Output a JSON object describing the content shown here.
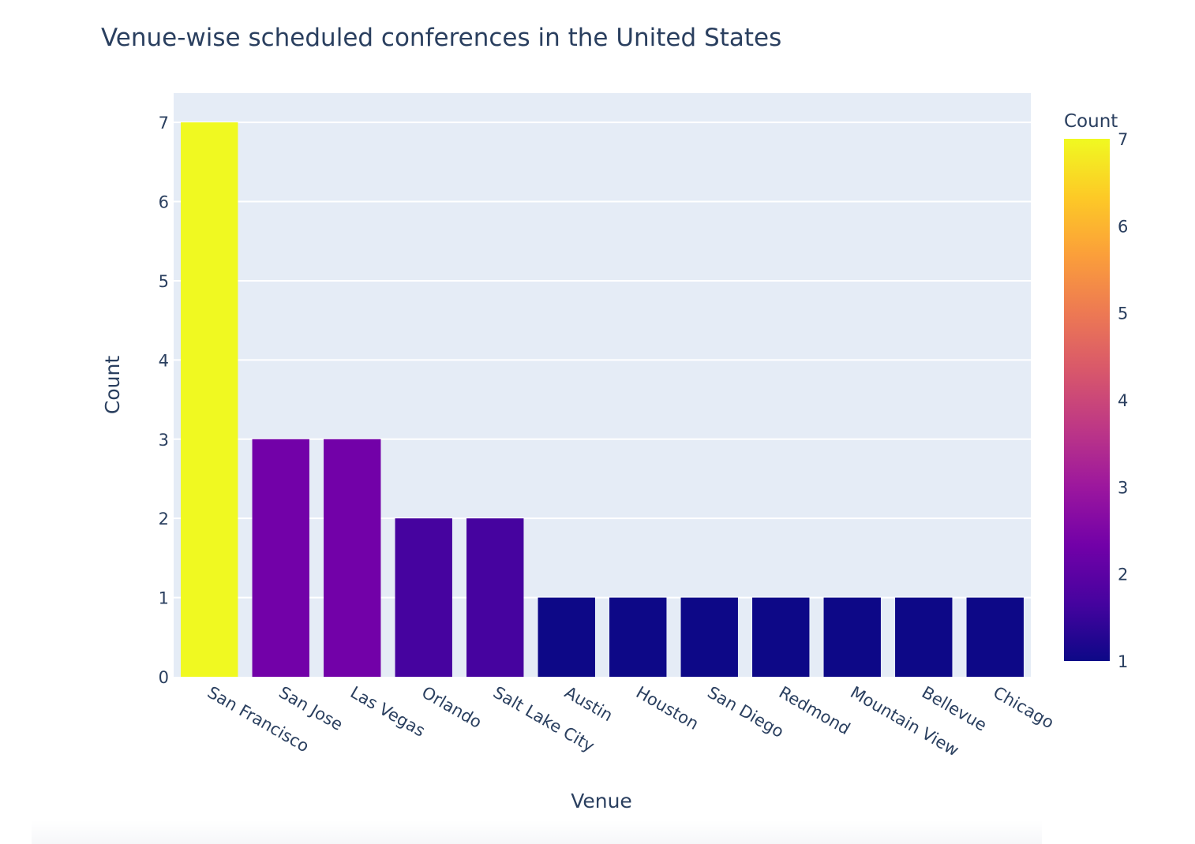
{
  "chart_data": {
    "type": "bar",
    "title": "Venue-wise scheduled conferences in the United States",
    "xlabel": "Venue",
    "ylabel": "Count",
    "categories": [
      "San Francisco",
      "San Jose",
      "Las Vegas",
      "Orlando",
      "Salt Lake City",
      "Austin",
      "Houston",
      "San Diego",
      "Redmond",
      "Mountain View",
      "Bellevue",
      "Chicago"
    ],
    "values": [
      7,
      3,
      3,
      2,
      2,
      1,
      1,
      1,
      1,
      1,
      1,
      1
    ],
    "ylim": [
      0,
      7.37
    ],
    "yticks": [
      0,
      1,
      2,
      3,
      4,
      5,
      6,
      7
    ],
    "grid": true,
    "legend": "none",
    "colorbar": {
      "title": "Count",
      "range": [
        1,
        7
      ],
      "ticks": [
        1,
        2,
        3,
        4,
        5,
        6,
        7
      ],
      "colorscale": "Plasma",
      "colors": [
        "#0d0887",
        "#46039f",
        "#7201a8",
        "#9c179e",
        "#bd3786",
        "#d8576b",
        "#ed7953",
        "#fb9f3a",
        "#fdca26",
        "#f0f921"
      ]
    },
    "colors": {
      "plot_background": "#e5ecf6",
      "grid": "#ffffff",
      "text": "#2a3f5f",
      "bar_value_1": "#0d0887",
      "bar_value_2": "#46039f",
      "bar_value_3": "#7201a8",
      "bar_value_7": "#f0f921"
    }
  }
}
